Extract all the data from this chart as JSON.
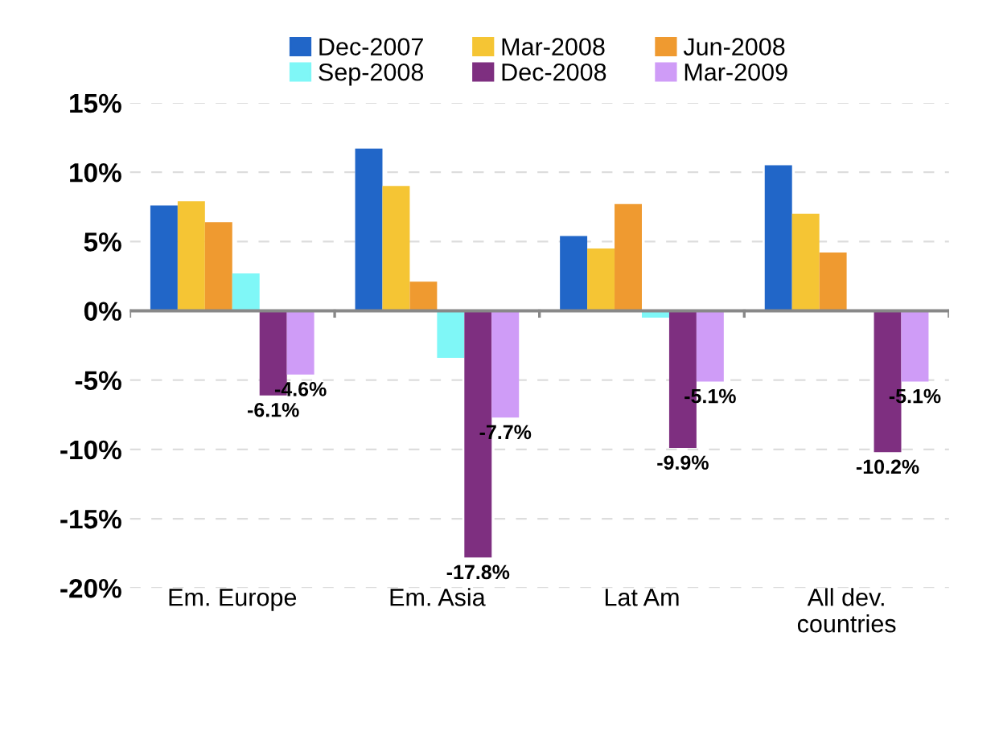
{
  "chart_data": {
    "type": "bar",
    "categories": [
      "Em. Europe",
      "Em. Asia",
      "Lat Am",
      "All dev.\ncountries"
    ],
    "series": [
      {
        "name": "Dec-2007",
        "color": "#2166c8",
        "values": [
          7.6,
          11.7,
          5.4,
          10.5
        ]
      },
      {
        "name": "Mar-2008",
        "color": "#f5c534",
        "values": [
          7.9,
          9.0,
          4.5,
          7.0
        ]
      },
      {
        "name": "Jun-2008",
        "color": "#ef9a30",
        "values": [
          6.4,
          2.1,
          7.7,
          4.2
        ]
      },
      {
        "name": "Sep-2008",
        "color": "#7ff7f7",
        "values": [
          2.7,
          -3.4,
          -0.5,
          null
        ]
      },
      {
        "name": "Dec-2008",
        "color": "#7e2f80",
        "values": [
          -6.1,
          -17.8,
          -9.9,
          -10.2
        ],
        "value_labels": [
          "-6.1%",
          "-17.8%",
          "-9.9%",
          "-10.2%"
        ]
      },
      {
        "name": "Mar-2009",
        "color": "#cf9cf7",
        "values": [
          -4.6,
          -7.7,
          -5.1,
          -5.1
        ],
        "value_labels": [
          "-4.6%",
          "-7.7%",
          "-5.1%",
          "-5.1%"
        ]
      }
    ],
    "ylim": [
      -20,
      15
    ],
    "yticks": [
      {
        "value": -20,
        "label": "-20%"
      },
      {
        "value": -15,
        "label": "-15%"
      },
      {
        "value": -10,
        "label": "-10%"
      },
      {
        "value": -5,
        "label": "-5%"
      },
      {
        "value": 0,
        "label": "0%"
      },
      {
        "value": 5,
        "label": "5%"
      },
      {
        "value": 10,
        "label": "10%"
      },
      {
        "value": 15,
        "label": "15%"
      }
    ],
    "grid": "y",
    "legend": "top"
  }
}
